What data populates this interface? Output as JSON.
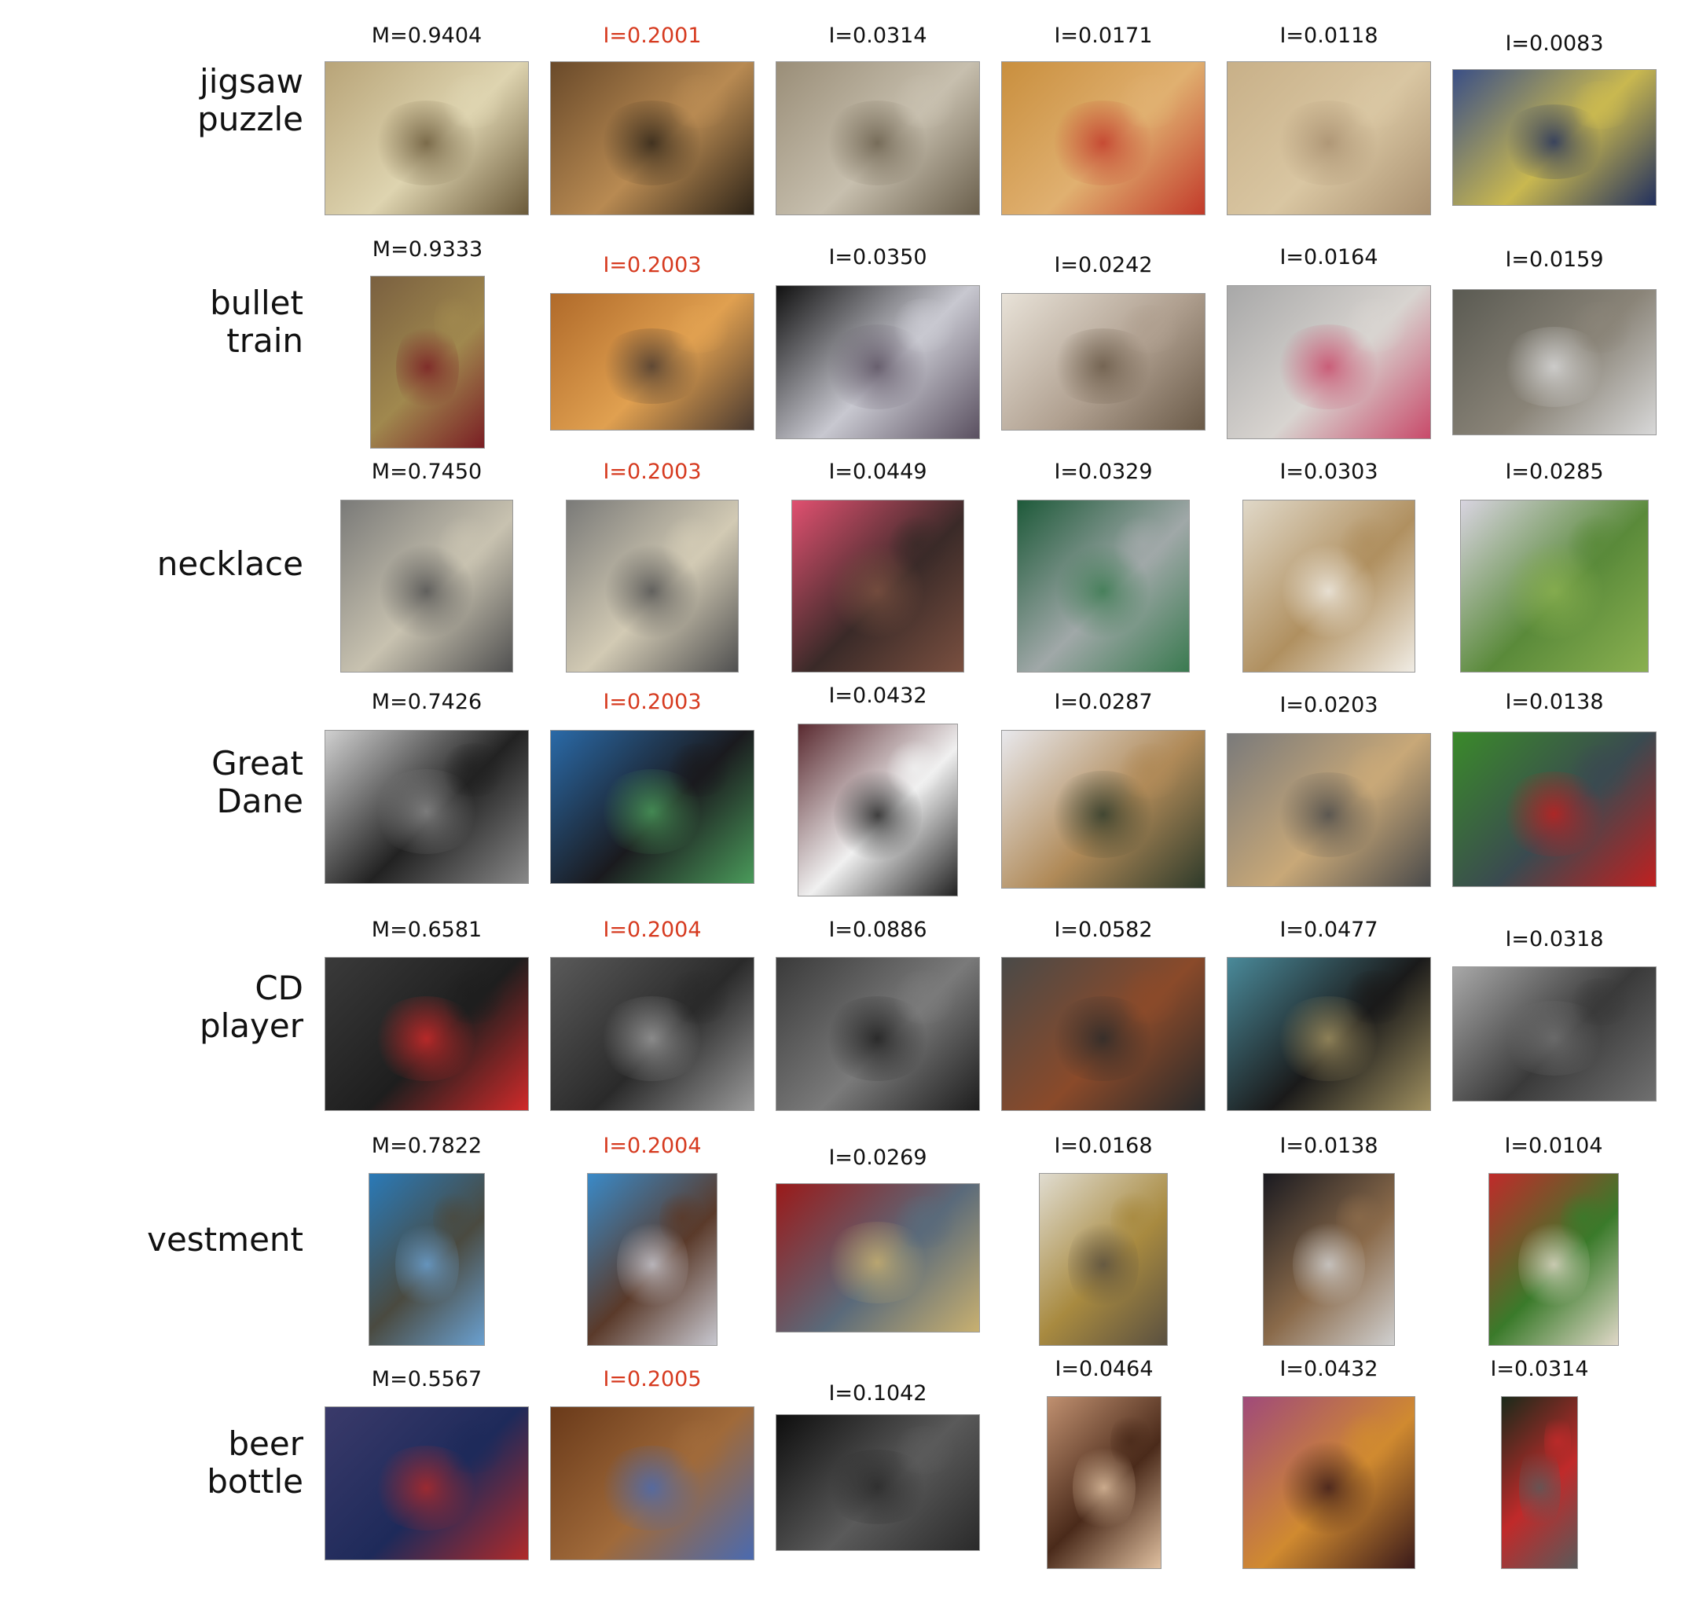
{
  "rows": [
    {
      "label": "jigsaw\npuzzle",
      "cells": [
        {
          "score": "M=0.9404",
          "highlight": false,
          "subject": "puzzle-on-table",
          "colors": [
            "#b8a478",
            "#ded4b0",
            "#6b5a3a"
          ]
        },
        {
          "score": "I=0.2001",
          "highlight": true,
          "subject": "people-doing-puzzle",
          "colors": [
            "#6a4a2a",
            "#b88a52",
            "#2e2418"
          ]
        },
        {
          "score": "I=0.0314",
          "highlight": false,
          "subject": "round-puzzle",
          "colors": [
            "#9a8e78",
            "#c7bfae",
            "#6a5f4c"
          ]
        },
        {
          "score": "I=0.0171",
          "highlight": false,
          "subject": "hand-with-pieces",
          "colors": [
            "#c98f3e",
            "#e0b070",
            "#c23a2a"
          ]
        },
        {
          "score": "I=0.0118",
          "highlight": false,
          "subject": "puzzle-texture",
          "colors": [
            "#c8b088",
            "#d9c6a2",
            "#a99070"
          ]
        },
        {
          "score": "I=0.0083",
          "highlight": false,
          "subject": "puzzle-closeup",
          "colors": [
            "#3a4f86",
            "#c9b850",
            "#22305e"
          ]
        }
      ]
    },
    {
      "label": "bullet\ntrain",
      "cells": [
        {
          "score": "M=0.9333",
          "highlight": false,
          "subject": "train-station",
          "colors": [
            "#7a6040",
            "#a0884e",
            "#7a1e24"
          ]
        },
        {
          "score": "I=0.2003",
          "highlight": true,
          "subject": "station-platform",
          "colors": [
            "#b06a2a",
            "#e0a050",
            "#4a3a30"
          ]
        },
        {
          "score": "I=0.0350",
          "highlight": false,
          "subject": "train-render",
          "colors": [
            "#111111",
            "#c8c8d0",
            "#5a5060"
          ]
        },
        {
          "score": "I=0.0242",
          "highlight": false,
          "subject": "train-motion",
          "colors": [
            "#e8e2d8",
            "#b0a090",
            "#6a5a48"
          ]
        },
        {
          "score": "I=0.0164",
          "highlight": false,
          "subject": "train-interior",
          "colors": [
            "#a8a8a8",
            "#d8d4d0",
            "#c84a6a"
          ]
        },
        {
          "score": "I=0.0159",
          "highlight": false,
          "subject": "train-aerial",
          "colors": [
            "#5a5a52",
            "#8a8478",
            "#d8d8d8"
          ]
        }
      ]
    },
    {
      "label": "necklace",
      "cells": [
        {
          "score": "M=0.7450",
          "highlight": false,
          "subject": "pendant",
          "colors": [
            "#7a7a78",
            "#c8c2b0",
            "#505050"
          ]
        },
        {
          "score": "I=0.2003",
          "highlight": true,
          "subject": "pendant",
          "colors": [
            "#7a7a78",
            "#d2cab4",
            "#505050"
          ]
        },
        {
          "score": "I=0.0449",
          "highlight": false,
          "subject": "chain-necklace",
          "colors": [
            "#e05070",
            "#3a2a28",
            "#7a5040"
          ]
        },
        {
          "score": "I=0.0329",
          "highlight": false,
          "subject": "silver-necklace",
          "colors": [
            "#1e5a3a",
            "#a0a8a8",
            "#3a7a50"
          ]
        },
        {
          "score": "I=0.0303",
          "highlight": false,
          "subject": "pearl-necklace",
          "colors": [
            "#e0d8c8",
            "#b09060",
            "#f0ece4"
          ]
        },
        {
          "score": "I=0.0285",
          "highlight": false,
          "subject": "leaf-necklace",
          "colors": [
            "#d8d4e0",
            "#5a8a3a",
            "#8ab050"
          ]
        }
      ]
    },
    {
      "label": "Great\nDane",
      "cells": [
        {
          "score": "M=0.7426",
          "highlight": false,
          "subject": "dog-portrait",
          "colors": [
            "#d0d0d0",
            "#222222",
            "#888888"
          ]
        },
        {
          "score": "I=0.2003",
          "highlight": true,
          "subject": "dog-portrait",
          "colors": [
            "#2a6aa8",
            "#1a1a1e",
            "#4a9a5a"
          ]
        },
        {
          "score": "I=0.0432",
          "highlight": false,
          "subject": "spotted-dog",
          "colors": [
            "#5a2a30",
            "#f0f0f0",
            "#222222"
          ]
        },
        {
          "score": "I=0.0287",
          "highlight": false,
          "subject": "dog-in-snow",
          "colors": [
            "#e8e8ec",
            "#b08a58",
            "#2e3a2a"
          ]
        },
        {
          "score": "I=0.0203",
          "highlight": false,
          "subject": "dog-in-field",
          "colors": [
            "#7a7a7a",
            "#c8a878",
            "#4a4a4a"
          ]
        },
        {
          "score": "I=0.0138",
          "highlight": false,
          "subject": "dog-on-grass",
          "colors": [
            "#3a8a2a",
            "#3a4a50",
            "#c02020"
          ]
        }
      ]
    },
    {
      "label": "CD\nplayer",
      "cells": [
        {
          "score": "M=0.6581",
          "highlight": false,
          "subject": "car-stereo",
          "colors": [
            "#3a3a3a",
            "#1e1e1e",
            "#d02a2a"
          ]
        },
        {
          "score": "I=0.2004",
          "highlight": true,
          "subject": "car-stereo",
          "colors": [
            "#5a5a5a",
            "#2a2a2a",
            "#9a9a9a"
          ]
        },
        {
          "score": "I=0.0886",
          "highlight": false,
          "subject": "car-dashboard",
          "colors": [
            "#3a3a3a",
            "#7a7a7a",
            "#1e1e1e"
          ]
        },
        {
          "score": "I=0.0582",
          "highlight": false,
          "subject": "car-stereo",
          "colors": [
            "#4a4a48",
            "#8a4a2a",
            "#2a2a2a"
          ]
        },
        {
          "score": "I=0.0477",
          "highlight": false,
          "subject": "black-box",
          "colors": [
            "#4a8a9a",
            "#1a1a1a",
            "#a09060"
          ]
        },
        {
          "score": "I=0.0318",
          "highlight": false,
          "subject": "cd-player-closeup",
          "colors": [
            "#a8a8a8",
            "#3a3a3a",
            "#707070"
          ]
        }
      ]
    },
    {
      "label": "vestment",
      "cells": [
        {
          "score": "M=0.7822",
          "highlight": false,
          "subject": "blue-cloak",
          "colors": [
            "#2a7ab8",
            "#4a4a40",
            "#6aa0d0"
          ]
        },
        {
          "score": "I=0.2004",
          "highlight": true,
          "subject": "priest-vestment",
          "colors": [
            "#3a8ac8",
            "#5a3a2a",
            "#c8c8d0"
          ]
        },
        {
          "score": "I=0.0269",
          "highlight": false,
          "subject": "embroidered-cloth",
          "colors": [
            "#9a1a1a",
            "#5a6a7a",
            "#c8b070"
          ]
        },
        {
          "score": "I=0.0168",
          "highlight": false,
          "subject": "gold-embroidery",
          "colors": [
            "#e0dcd0",
            "#a88a40",
            "#5a5040"
          ]
        },
        {
          "score": "I=0.0138",
          "highlight": false,
          "subject": "procession",
          "colors": [
            "#1a1a20",
            "#8a6a4a",
            "#d0d0d0"
          ]
        },
        {
          "score": "I=0.0104",
          "highlight": false,
          "subject": "statue-flowers",
          "colors": [
            "#c02a2a",
            "#3a7a2a",
            "#e0d8c8"
          ]
        }
      ]
    },
    {
      "label": "beer\nbottle",
      "cells": [
        {
          "score": "M=0.5567",
          "highlight": false,
          "subject": "bottle-cake",
          "colors": [
            "#3a3a6a",
            "#1e2a5a",
            "#b02a2a"
          ]
        },
        {
          "score": "I=0.2005",
          "highlight": true,
          "subject": "bottle-cake",
          "colors": [
            "#6a3a1a",
            "#a06a3a",
            "#4a6ab0"
          ]
        },
        {
          "score": "I=0.1042",
          "highlight": false,
          "subject": "dark-bottles",
          "colors": [
            "#0e0e0e",
            "#5a5a5a",
            "#2a2a2a"
          ]
        },
        {
          "score": "I=0.0464",
          "highlight": false,
          "subject": "blurred-bottle",
          "colors": [
            "#c09070",
            "#4a2a1a",
            "#e0c0a0"
          ]
        },
        {
          "score": "I=0.0432",
          "highlight": false,
          "subject": "root-beer",
          "colors": [
            "#a04a7a",
            "#d08a30",
            "#3a1a1a"
          ]
        },
        {
          "score": "I=0.0314",
          "highlight": false,
          "subject": "six-pack",
          "colors": [
            "#1a2a1a",
            "#c02a2a",
            "#5a5a5a"
          ]
        }
      ]
    }
  ]
}
